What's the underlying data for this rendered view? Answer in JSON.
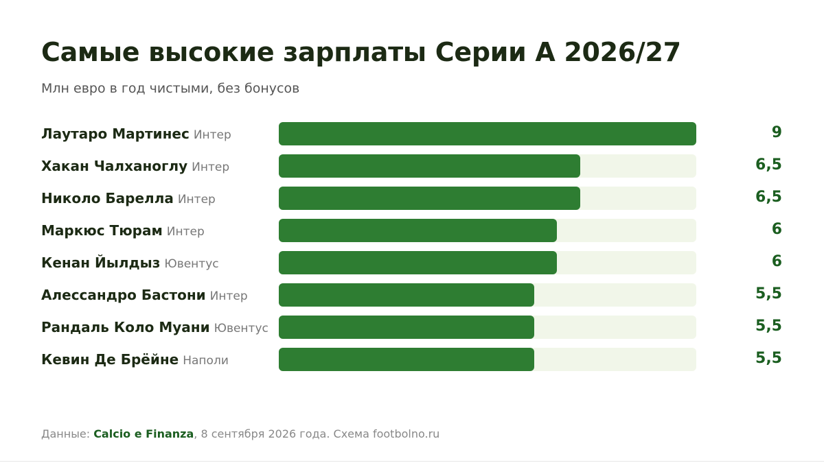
{
  "title": "Самые высокие зарплаты Серии А 2026/27",
  "subtitle": "Млн евро в год чистыми, без бонусов",
  "footer": {
    "prefix": "Данные: ",
    "source": "Calcio e Finanza",
    "suffix": ", 8 сентября 2026 года. Схема footbolno.ru"
  },
  "colors": {
    "bar": "#2e7d32",
    "track": "#f1f6e9",
    "value": "#1b5e20",
    "title": "#1c2a14"
  },
  "chart_data": {
    "type": "bar",
    "orientation": "horizontal",
    "xlim": [
      0,
      9
    ],
    "categories": [
      "Лаутаро Мартинес",
      "Хакан Чалханоглу",
      "Николо Барелла",
      "Маркюс Тюрам",
      "Кенан Йылдыз",
      "Алессандро Бастони",
      "Рандаль Коло Муани",
      "Кевин Де Брёйне"
    ],
    "clubs": [
      "Интер",
      "Интер",
      "Интер",
      "Интер",
      "Ювентус",
      "Интер",
      "Ювентус",
      "Наполи"
    ],
    "values": [
      9,
      6.5,
      6.5,
      6,
      6,
      5.5,
      5.5,
      5.5
    ],
    "value_labels": [
      "9",
      "6,5",
      "6,5",
      "6",
      "6",
      "5,5",
      "5,5",
      "5,5"
    ]
  }
}
